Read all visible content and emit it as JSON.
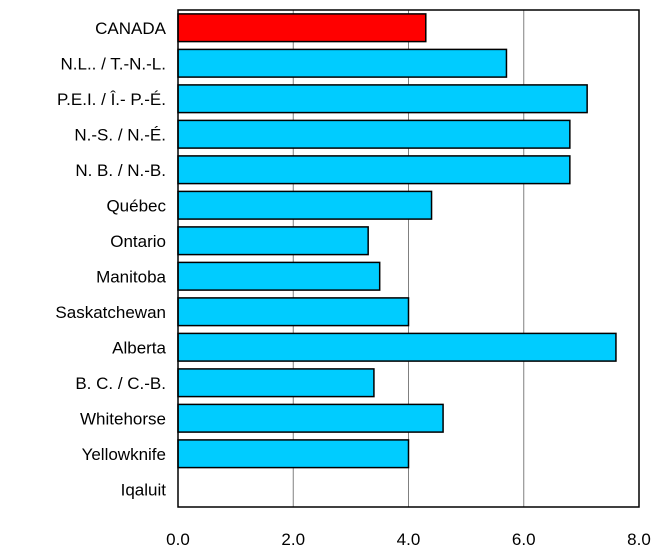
{
  "chart_data": {
    "type": "bar",
    "orientation": "horizontal",
    "title": "",
    "xlabel": "",
    "ylabel": "",
    "xlim": [
      0,
      8
    ],
    "x_ticks": [
      0,
      2,
      4,
      6,
      8
    ],
    "x_tick_labels": [
      "0.0",
      "2.0",
      "4.0",
      "6.0",
      "8.0"
    ],
    "grid": "vertical",
    "legend": "none",
    "categories": [
      "CANADA",
      "N.L.. / T.-N.-L.",
      "P.E.I. / Î.- P.-É.",
      "N.-S. / N.-É.",
      "N. B. / N.-B.",
      "Québec",
      "Ontario",
      "Manitoba",
      "Saskatchewan",
      "Alberta",
      "B. C. / C.-B.",
      "Whitehorse",
      "Yellowknife",
      "Iqaluit"
    ],
    "values": [
      4.3,
      5.7,
      7.1,
      6.8,
      6.8,
      4.4,
      3.3,
      3.5,
      4.0,
      7.6,
      3.4,
      4.6,
      4.0,
      null
    ],
    "colors": {
      "highlight": "#ff0000",
      "default": "#00ccff",
      "outline": "#000000",
      "grid": "#808080"
    },
    "highlight_categories": [
      "CANADA"
    ]
  }
}
